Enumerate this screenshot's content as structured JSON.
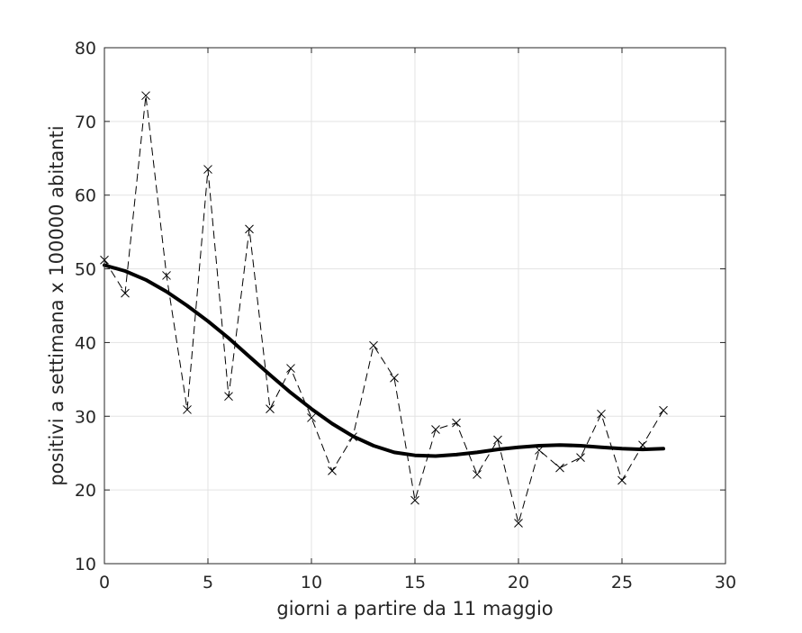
{
  "chart_data": {
    "type": "line",
    "title": "",
    "xlabel": "giorni a partire da 11 maggio",
    "ylabel": "positivi a settimana x 100000 abitanti",
    "xlim": [
      0,
      30
    ],
    "ylim": [
      10,
      80
    ],
    "xticks": [
      0,
      5,
      10,
      15,
      20,
      25,
      30
    ],
    "yticks": [
      10,
      20,
      30,
      40,
      50,
      60,
      70,
      80
    ],
    "grid": true,
    "legend": "none",
    "series": [
      {
        "style": "dashed-with-x-markers",
        "color": "#000000",
        "x": [
          0,
          1,
          2,
          3,
          4,
          5,
          6,
          7,
          8,
          9,
          10,
          11,
          12,
          13,
          14,
          15,
          16,
          17,
          18,
          19,
          20,
          21,
          22,
          23,
          24,
          25,
          26,
          27
        ],
        "y": [
          51.2,
          46.7,
          73.5,
          49.1,
          30.9,
          63.5,
          32.7,
          55.4,
          31.0,
          36.5,
          29.8,
          22.6,
          27.2,
          39.6,
          35.2,
          18.6,
          28.2,
          29.1,
          22.1,
          26.8,
          15.5,
          25.4,
          23.0,
          24.4,
          30.3,
          21.3,
          26.1,
          30.8
        ]
      },
      {
        "style": "thick-solid",
        "color": "#000000",
        "x": [
          0,
          1,
          2,
          3,
          4,
          5,
          6,
          7,
          8,
          9,
          10,
          11,
          12,
          13,
          14,
          15,
          16,
          17,
          18,
          19,
          20,
          21,
          22,
          23,
          24,
          25,
          26,
          27
        ],
        "y": [
          50.5,
          49.7,
          48.5,
          46.9,
          45.0,
          42.9,
          40.6,
          38.1,
          35.6,
          33.2,
          31.0,
          29.0,
          27.3,
          26.0,
          25.1,
          24.7,
          24.6,
          24.8,
          25.1,
          25.5,
          25.8,
          26.0,
          26.1,
          26.0,
          25.8,
          25.6,
          25.5,
          25.6
        ]
      }
    ]
  }
}
